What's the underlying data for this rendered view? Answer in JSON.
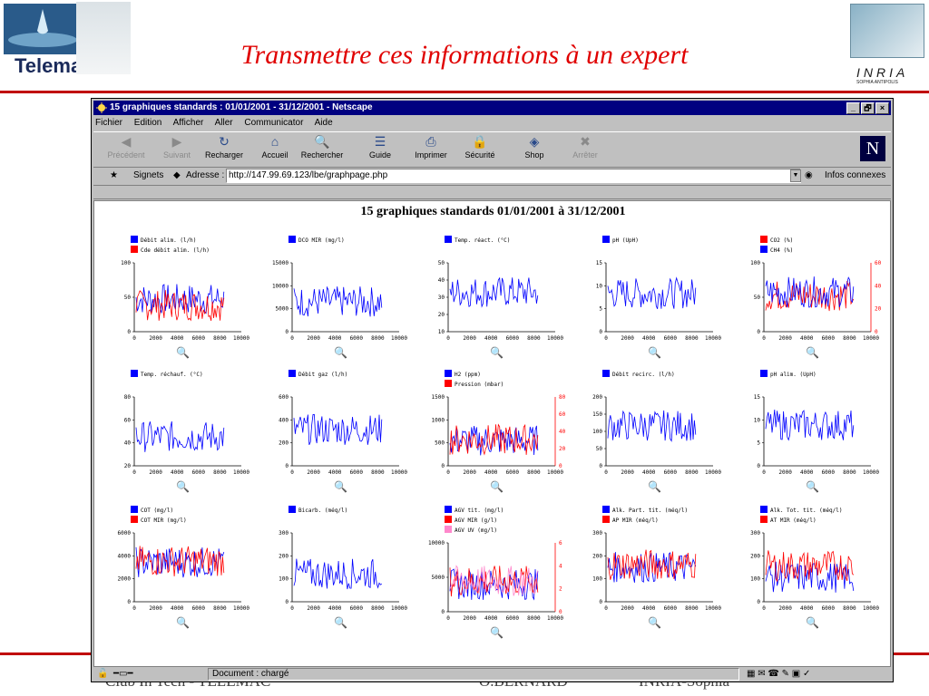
{
  "slide": {
    "title": "Transmettre ces informations à un expert",
    "footer_left": "Club In Tech - TELEMAC",
    "footer_mid": "O.BERNARD",
    "footer_right": "INRIA-Sophia",
    "logo_left_text": "Telemac",
    "logo_right_text": "INRIA",
    "logo_right_sub": "SOPHIA ANTIPOLIS"
  },
  "window": {
    "title": "15 graphiques standards : 01/01/2001 - 31/12/2001 - Netscape",
    "controls": [
      "_",
      "🗗",
      "×"
    ]
  },
  "menu": [
    "Fichier",
    "Edition",
    "Afficher",
    "Aller",
    "Communicator",
    "Aide"
  ],
  "toolbar": [
    {
      "label": "Précédent",
      "icon": "back-arrow-icon",
      "enabled": false
    },
    {
      "label": "Suivant",
      "icon": "forward-arrow-icon",
      "enabled": false
    },
    {
      "label": "Recharger",
      "icon": "reload-icon",
      "enabled": true
    },
    {
      "label": "Accueil",
      "icon": "home-icon",
      "enabled": true
    },
    {
      "label": "Rechercher",
      "icon": "search-icon",
      "enabled": true
    },
    {
      "label": "Guide",
      "icon": "guide-icon",
      "enabled": true
    },
    {
      "label": "Imprimer",
      "icon": "print-icon",
      "enabled": true
    },
    {
      "label": "Sécurité",
      "icon": "lock-icon",
      "enabled": true
    },
    {
      "label": "Shop",
      "icon": "shop-icon",
      "enabled": true
    },
    {
      "label": "Arrêter",
      "icon": "stop-icon",
      "enabled": false
    }
  ],
  "location": {
    "bookmarks_label": "Signets",
    "address_label": "Adresse :",
    "url": "http://147.99.69.123/lbe/graphpage.php",
    "related_label": "Infos connexes"
  },
  "status": {
    "text": "Document : chargé"
  },
  "page": {
    "heading": "15 graphiques standards    01/01/2001 à 31/12/2001"
  },
  "colors": {
    "blue": "#0000ff",
    "red": "#ff0000",
    "pink": "#ff88cc",
    "slide_red": "#e00000"
  },
  "chart_data": [
    {
      "type": "line",
      "legend": [
        {
          "name": "Débit alim. (l/h)",
          "color": "#0000ff"
        },
        {
          "name": "Cde débit alim. (l/h)",
          "color": "#ff0000"
        }
      ],
      "yticks": [
        "100",
        "50",
        "0"
      ],
      "ylim": [
        0,
        100
      ],
      "y2ticks": [],
      "xticks": [
        "0",
        "2000",
        "4000",
        "6000",
        "8000",
        "10000"
      ],
      "xlim": [
        0,
        10000
      ]
    },
    {
      "type": "line",
      "legend": [
        {
          "name": "DCO MIR (mg/l)",
          "color": "#0000ff"
        }
      ],
      "yticks": [
        "15000",
        "10000",
        "5000",
        "0"
      ],
      "ylim": [
        0,
        15000
      ],
      "y2ticks": [],
      "xticks": [
        "0",
        "2000",
        "4000",
        "6000",
        "8000",
        "10000"
      ],
      "xlim": [
        0,
        10000
      ]
    },
    {
      "type": "line",
      "legend": [
        {
          "name": "Temp. réact. (°C)",
          "color": "#0000ff"
        }
      ],
      "yticks": [
        "50",
        "40",
        "30",
        "20",
        "10"
      ],
      "ylim": [
        10,
        50
      ],
      "y2ticks": [],
      "xticks": [
        "0",
        "2000",
        "4000",
        "6000",
        "8000",
        "10000"
      ],
      "xlim": [
        0,
        10000
      ]
    },
    {
      "type": "line",
      "legend": [
        {
          "name": "pH (UpH)",
          "color": "#0000ff"
        }
      ],
      "yticks": [
        "15",
        "10",
        "5",
        "0"
      ],
      "ylim": [
        0,
        15
      ],
      "y2ticks": [],
      "xticks": [
        "0",
        "2000",
        "4000",
        "6000",
        "8000",
        "10000"
      ],
      "xlim": [
        0,
        10000
      ]
    },
    {
      "type": "line",
      "legend": [
        {
          "name": "CO2 (%)",
          "color": "#ff0000"
        },
        {
          "name": "CH4 (%)",
          "color": "#0000ff"
        }
      ],
      "yticks": [
        "100",
        "50",
        "0"
      ],
      "ylim": [
        0,
        100
      ],
      "y2ticks": [
        "60",
        "40",
        "20",
        "0"
      ],
      "xticks": [
        "0",
        "2000",
        "4000",
        "6000",
        "8000",
        "10000"
      ],
      "xlim": [
        0,
        10000
      ]
    },
    {
      "type": "line",
      "legend": [
        {
          "name": "Temp. réchauf. (°C)",
          "color": "#0000ff"
        }
      ],
      "yticks": [
        "80",
        "60",
        "40",
        "20"
      ],
      "ylim": [
        20,
        80
      ],
      "y2ticks": [],
      "xticks": [
        "0",
        "2000",
        "4000",
        "6000",
        "8000",
        "10000"
      ],
      "xlim": [
        0,
        10000
      ]
    },
    {
      "type": "line",
      "legend": [
        {
          "name": "Débit gaz (l/h)",
          "color": "#0000ff"
        }
      ],
      "yticks": [
        "600",
        "400",
        "200",
        "0"
      ],
      "ylim": [
        0,
        600
      ],
      "y2ticks": [],
      "xticks": [
        "0",
        "2000",
        "4000",
        "6000",
        "8000",
        "10000"
      ],
      "xlim": [
        0,
        10000
      ]
    },
    {
      "type": "line",
      "legend": [
        {
          "name": "H2 (ppm)",
          "color": "#0000ff"
        },
        {
          "name": "Pression (mbar)",
          "color": "#ff0000"
        }
      ],
      "yticks": [
        "1500",
        "1000",
        "500",
        "0"
      ],
      "ylim": [
        0,
        1500
      ],
      "y2ticks": [
        "80",
        "60",
        "40",
        "20",
        "0"
      ],
      "xticks": [
        "0",
        "2000",
        "4000",
        "6000",
        "8000",
        "10000"
      ],
      "xlim": [
        0,
        10000
      ]
    },
    {
      "type": "line",
      "legend": [
        {
          "name": "Débit recirc. (l/h)",
          "color": "#0000ff"
        }
      ],
      "yticks": [
        "200",
        "150",
        "100",
        "50",
        "0"
      ],
      "ylim": [
        0,
        200
      ],
      "y2ticks": [],
      "xticks": [
        "0",
        "2000",
        "4000",
        "6000",
        "8000",
        "10000"
      ],
      "xlim": [
        0,
        10000
      ]
    },
    {
      "type": "line",
      "legend": [
        {
          "name": "pH alim. (UpH)",
          "color": "#0000ff"
        }
      ],
      "yticks": [
        "15",
        "10",
        "5",
        "0"
      ],
      "ylim": [
        0,
        15
      ],
      "y2ticks": [],
      "xticks": [
        "0",
        "2000",
        "4000",
        "6000",
        "8000",
        "10000"
      ],
      "xlim": [
        0,
        10000
      ]
    },
    {
      "type": "line",
      "legend": [
        {
          "name": "COT (mg/l)",
          "color": "#0000ff"
        },
        {
          "name": "COT MIR (mg/l)",
          "color": "#ff0000"
        }
      ],
      "yticks": [
        "6000",
        "4000",
        "2000",
        "0"
      ],
      "ylim": [
        0,
        6000
      ],
      "y2ticks": [],
      "xticks": [
        "0",
        "2000",
        "4000",
        "6000",
        "8000",
        "10000"
      ],
      "xlim": [
        0,
        10000
      ]
    },
    {
      "type": "line",
      "legend": [
        {
          "name": "Bicarb. (méq/l)",
          "color": "#0000ff"
        }
      ],
      "yticks": [
        "300",
        "200",
        "100",
        "0"
      ],
      "ylim": [
        0,
        300
      ],
      "y2ticks": [],
      "xticks": [
        "0",
        "2000",
        "4000",
        "6000",
        "8000",
        "10000"
      ],
      "xlim": [
        0,
        10000
      ]
    },
    {
      "type": "line",
      "legend": [
        {
          "name": "AGV tit. (mg/l)",
          "color": "#0000ff"
        },
        {
          "name": "AGV MIR (g/l)",
          "color": "#ff0000"
        },
        {
          "name": "AGV UV (mg/l)",
          "color": "#ff88cc"
        }
      ],
      "yticks": [
        "10000",
        "5000",
        "0"
      ],
      "ylim": [
        0,
        10000
      ],
      "y2ticks": [
        "6",
        "4",
        "2",
        "0"
      ],
      "xticks": [
        "0",
        "2000",
        "4000",
        "6000",
        "8000",
        "10000"
      ],
      "xlim": [
        0,
        10000
      ]
    },
    {
      "type": "line",
      "legend": [
        {
          "name": "Alk. Part. tit. (méq/l)",
          "color": "#0000ff"
        },
        {
          "name": "AP MIR (méq/l)",
          "color": "#ff0000"
        }
      ],
      "yticks": [
        "300",
        "200",
        "100",
        "0"
      ],
      "ylim": [
        0,
        300
      ],
      "y2ticks": [],
      "xticks": [
        "0",
        "2000",
        "4000",
        "6000",
        "8000",
        "10000"
      ],
      "xlim": [
        0,
        10000
      ]
    },
    {
      "type": "line",
      "legend": [
        {
          "name": "Alk. Tot. tit. (méq/l)",
          "color": "#0000ff"
        },
        {
          "name": "AT MIR (méq/l)",
          "color": "#ff0000"
        }
      ],
      "yticks": [
        "300",
        "200",
        "100",
        "0"
      ],
      "ylim": [
        0,
        300
      ],
      "y2ticks": [],
      "xticks": [
        "0",
        "2000",
        "4000",
        "6000",
        "8000",
        "10000"
      ],
      "xlim": [
        0,
        10000
      ]
    }
  ]
}
